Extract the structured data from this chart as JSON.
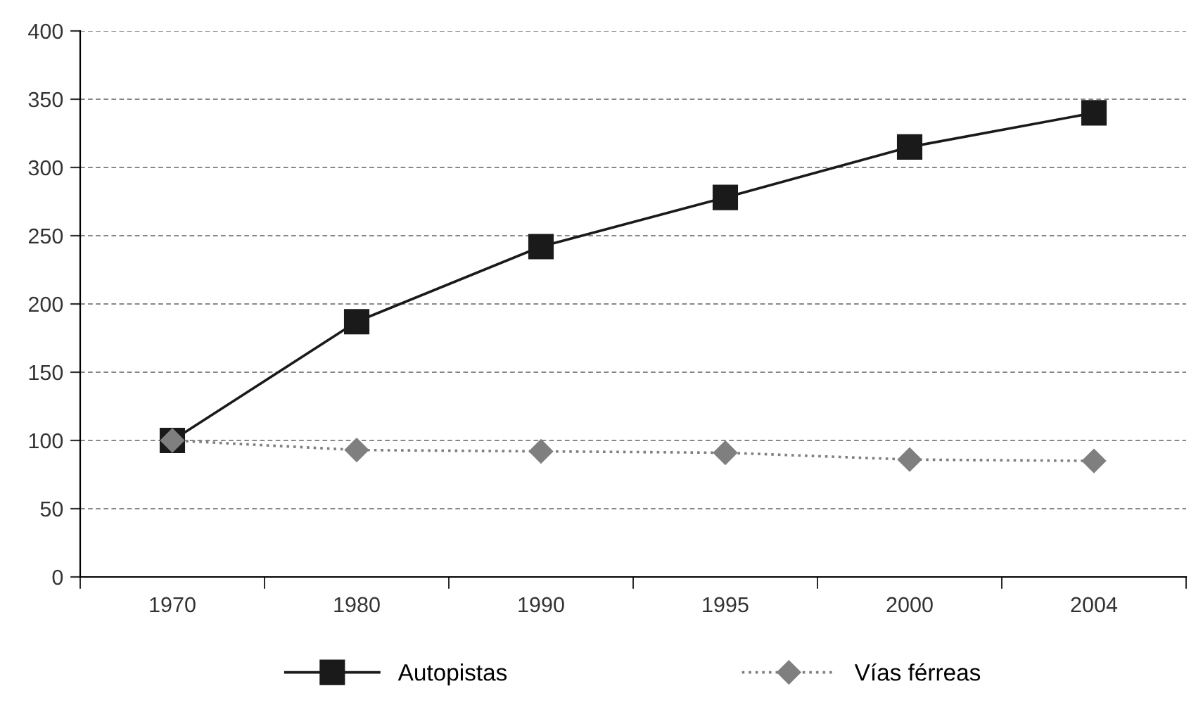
{
  "chart_data": {
    "type": "line",
    "categories": [
      "1970",
      "1980",
      "1990",
      "1995",
      "2000",
      "2004"
    ],
    "series": [
      {
        "name": "Autopistas",
        "color": "#1a1a1a",
        "values": [
          100,
          187,
          242,
          278,
          315,
          340
        ],
        "marker": "square",
        "line_style": "solid"
      },
      {
        "name": "Vías férreas",
        "color": "#7f7f7f",
        "values": [
          100,
          93,
          92,
          91,
          86,
          85
        ],
        "marker": "diamond",
        "line_style": "dotted"
      }
    ],
    "ylim": [
      0,
      400
    ],
    "yticks": [
      0,
      50,
      100,
      150,
      200,
      250,
      300,
      350,
      400
    ],
    "grid": "y",
    "legend": "bottom"
  }
}
